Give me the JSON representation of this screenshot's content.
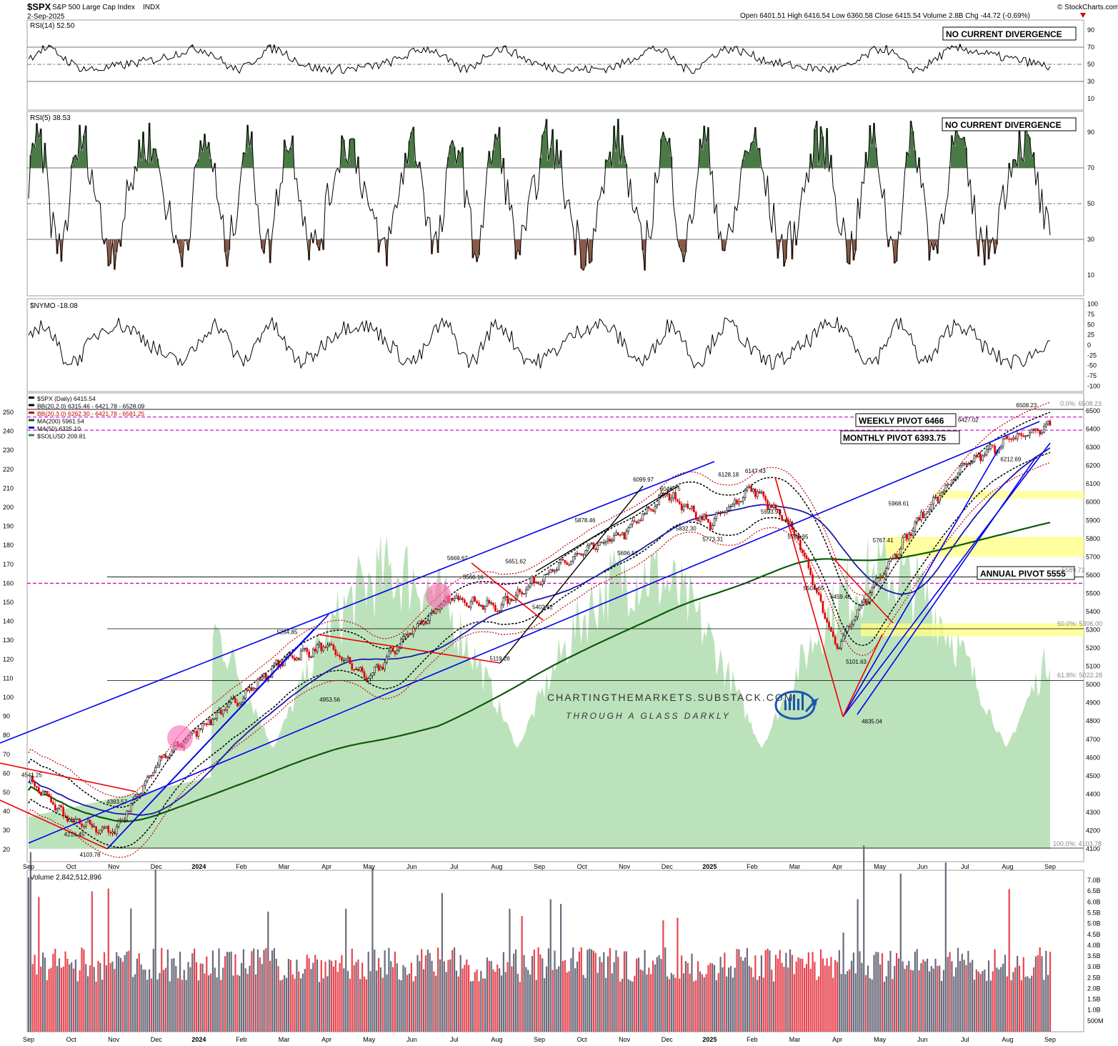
{
  "header": {
    "symbol": "$SPX",
    "name": "S&P 500 Large Cap Index",
    "exchange": "INDX",
    "date": "2-Sep-2025",
    "ohlc_text": "Open 6401.51  High 6416.54  Low 6360.58  Close 6415.54  Volume 2.8B  Chg -44.72 (-0.69%)",
    "chg_icon": "down-triangle-icon",
    "credit": "© StockCharts.com"
  },
  "colors": {
    "up": "#000000",
    "down": "#e00000",
    "volume_up": "#6b6b7b",
    "volume_down": "#e8454f",
    "rsi_overbought_fill": "#4a7a45",
    "rsi_oversold_fill": "#8a5a48",
    "solusd_area": "#a6d8a4",
    "bb_black": "#000000",
    "bb_red": "#c00000",
    "ma200": "#0a5a0a",
    "ma50": "#1a1aa8",
    "trend_blue": "#0000ee",
    "trend_red": "#ee0000",
    "pivot_magenta": "#cc00cc",
    "highlight_yellow": "#ffff88"
  },
  "rsi14": {
    "label": "RSI(14) 52.50",
    "note": "NO CURRENT DIVERGENCE",
    "ticks": [
      "90",
      "70",
      "50",
      "30",
      "10"
    ]
  },
  "rsi5": {
    "label": "RSI(5) 38.53",
    "note": "NO CURRENT DIVERGENCE",
    "ticks": [
      "90",
      "70",
      "50",
      "30",
      "10"
    ]
  },
  "nymo": {
    "label": "$NYMO -18.08",
    "ticks": [
      "100",
      "75",
      "50",
      "25",
      "0",
      "-25",
      "-50",
      "-75",
      "-100"
    ]
  },
  "price": {
    "legend": [
      "$SPX (Daily) 6415.54",
      "BB(20,2.0) 6315.46 - 6421.78 - 6528.09",
      "BB(20,3.0) 6262.30 - 6421.78 - 6581.25",
      "MA(200) 5961.54",
      "MA(50) 6325.10",
      "$SOLUSD 209.81"
    ],
    "right_ticks": [
      "6500",
      "6400",
      "6300",
      "6200",
      "6100",
      "6000",
      "5900",
      "5800",
      "5700",
      "5600",
      "5500",
      "5400",
      "5300",
      "5200",
      "5100",
      "5000",
      "4900",
      "4800",
      "4700",
      "4600",
      "4500",
      "4400",
      "4300",
      "4200",
      "4100"
    ],
    "left_ticks": [
      "250",
      "240",
      "230",
      "220",
      "210",
      "200",
      "190",
      "180",
      "170",
      "160",
      "150",
      "140",
      "130",
      "120",
      "110",
      "100",
      "90",
      "80",
      "70",
      "60",
      "50",
      "40",
      "30",
      "20"
    ],
    "weekly_pivot": "WEEKLY PIVOT 6466",
    "monthly_pivot": "MONTHLY PIVOT 6393.75",
    "annual_pivot": "ANNUAL PIVOT 5555",
    "fib_0": "0.0%: 6508.23",
    "fib_50": "50.0%: 5306.00",
    "fib_618": "61.8%: 5022.28",
    "fib_100": "100.0%: 4103.78",
    "fib_mid": "5589.73",
    "watermark_line1": "CHARTINGTHEMARKETS.SUBSTACK.COM",
    "watermark_line2": "THROUGH A GLASS DARKLY"
  },
  "volume": {
    "label": "Volume 2,842,512,896",
    "ticks": [
      "7.0B",
      "6.5B",
      "6.0B",
      "5.5B",
      "5.0B",
      "4.5B",
      "4.0B",
      "3.5B",
      "3.0B",
      "2.5B",
      "2.0B",
      "1.5B",
      "1.0B",
      "500M"
    ]
  },
  "x_axis": {
    "labels": [
      "Sep",
      "Oct",
      "Nov",
      "Dec",
      "2024",
      "Feb",
      "Mar",
      "Apr",
      "May",
      "Jun",
      "Jul",
      "Aug",
      "Sep",
      "Oct",
      "Nov",
      "Dec",
      "2025",
      "Feb",
      "Mar",
      "Apr",
      "May",
      "Jun",
      "Jul",
      "Aug",
      "Sep"
    ]
  },
  "chart_data": {
    "type": "line",
    "title": "$SPX S&P 500 Large Cap Index INDX",
    "subtitle": "2-Sep-2025",
    "ylabel": "",
    "ylim": [
      4100,
      6550
    ],
    "series": [
      {
        "name": "$SPX (Daily) 6415.54",
        "x": [
          "Sep 2023",
          "Oct 2023",
          "Nov 2023",
          "Dec 2023",
          "2024",
          "Feb 2024",
          "Mar 2024",
          "Apr 2024",
          "May 2024",
          "Jun 2024",
          "Jul 2024",
          "Aug 2024",
          "Sep 2024",
          "Oct 2024",
          "Nov 2024",
          "Dec 2024",
          "2025",
          "Feb 2025",
          "Mar 2025",
          "Apr 2025",
          "May 2025",
          "Jun 2025",
          "Jul 2025",
          "Aug 2025",
          "Sep 2025"
        ],
        "values": [
          4480,
          4250,
          4190,
          4560,
          4760,
          4930,
          5140,
          5210,
          5030,
          5300,
          5480,
          5420,
          5580,
          5720,
          5830,
          6050,
          5880,
          6080,
          5840,
          5200,
          5600,
          5930,
          6200,
          6340,
          6415
        ]
      }
    ],
    "annotations": [
      {
        "label": "4541.25",
        "x": "Sep 2023",
        "y": 4541.25
      },
      {
        "label": "4216.45",
        "x": "Oct 2023",
        "y": 4216.45
      },
      {
        "label": "4103.78",
        "x": "Oct 2023",
        "y": 4103.78
      },
      {
        "label": "4393.57",
        "x": "Nov 2023",
        "y": 4393.57
      },
      {
        "label": "5264.85",
        "x": "Mar 2024",
        "y": 5264.85
      },
      {
        "label": "4953.56",
        "x": "Apr 2024",
        "y": 4953.56
      },
      {
        "label": "5669.67",
        "x": "Jul 2024",
        "y": 5669.67
      },
      {
        "label": "5566.16",
        "x": "Jul 2024",
        "y": 5566.16
      },
      {
        "label": "5119.26",
        "x": "Aug 2024",
        "y": 5119.26
      },
      {
        "label": "5651.62",
        "x": "Aug 2024",
        "y": 5651.62
      },
      {
        "label": "5402.62",
        "x": "Sep 2024",
        "y": 5402.62
      },
      {
        "label": "5878.46",
        "x": "Oct 2024",
        "y": 5878.46
      },
      {
        "label": "5696.51",
        "x": "Nov 2024",
        "y": 5696.51
      },
      {
        "label": "6099.97",
        "x": "Nov 2024",
        "y": 6099.97
      },
      {
        "label": "6049.75",
        "x": "Dec 2024",
        "y": 6049.75
      },
      {
        "label": "5832.30",
        "x": "Dec 2024",
        "y": 5832.3
      },
      {
        "label": "5773.31",
        "x": "2025",
        "y": 5773.31
      },
      {
        "label": "6128.18",
        "x": "2025",
        "y": 6128.18
      },
      {
        "label": "6147.43",
        "x": "Feb 2025",
        "y": 6147.43
      },
      {
        "label": "5923.93",
        "x": "Feb 2025",
        "y": 5923.93
      },
      {
        "label": "5786.95",
        "x": "Mar 2025",
        "y": 5786.95
      },
      {
        "label": "5504.65",
        "x": "Mar 2025",
        "y": 5504.65
      },
      {
        "label": "5459.46",
        "x": "Apr 2025",
        "y": 5459.46
      },
      {
        "label": "5101.63",
        "x": "Apr 2025",
        "y": 5101.63
      },
      {
        "label": "4835.04",
        "x": "Apr 2025",
        "y": 4835.04
      },
      {
        "label": "5767.41",
        "x": "May 2025",
        "y": 5767.41
      },
      {
        "label": "5968.61",
        "x": "May 2025",
        "y": 5968.61
      },
      {
        "label": "6427.02",
        "x": "Jul 2025",
        "y": 6427.02
      },
      {
        "label": "6212.69",
        "x": "Aug 2025",
        "y": 6212.69
      },
      {
        "label": "6508.23",
        "x": "Aug 2025",
        "y": 6508.23
      }
    ]
  }
}
